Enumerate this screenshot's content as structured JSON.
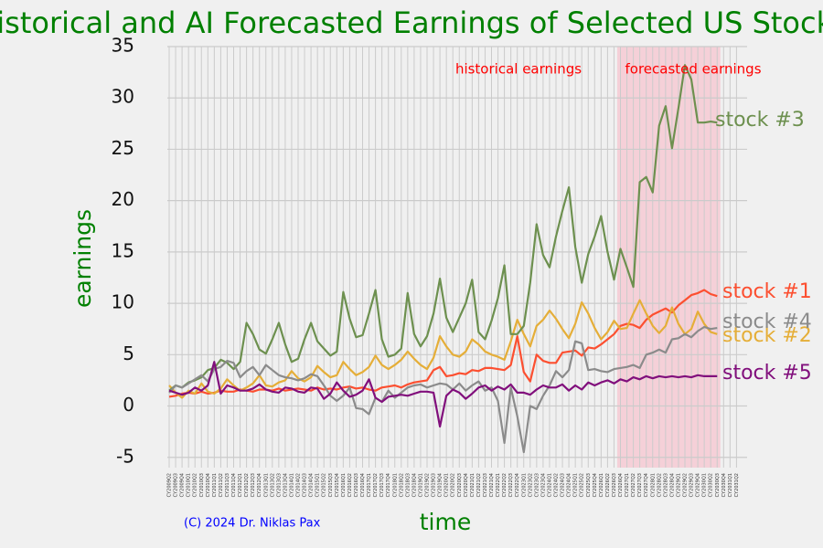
{
  "chart_data": {
    "type": "line",
    "title": "Historical and AI Forecasted Earnings of Selected US Stocks",
    "xlabel": "time",
    "ylabel": "earnings",
    "credit": "(C) 2024 Dr. Niklas Pax",
    "annotations": [
      "historical earnings",
      "forecasted earnings"
    ],
    "shaded_from": "CY2026Q4",
    "shaded_to": "CY2030Q3",
    "shade_color": "#f7c6d0",
    "grid": true,
    "ylim": [
      -6,
      35
    ],
    "yticks": [
      -5,
      0,
      5,
      10,
      15,
      20,
      25,
      30,
      35
    ],
    "categories": [
      "CY2009Q2",
      "CY2009Q3",
      "CY2009Q4",
      "CY2010Q1",
      "CY2010Q2",
      "CY2010Q3",
      "CY2010Q4",
      "CY2011Q1",
      "CY2011Q2",
      "CY2011Q3",
      "CY2011Q4",
      "CY2012Q1",
      "CY2012Q2",
      "CY2012Q3",
      "CY2012Q4",
      "CY2013Q1",
      "CY2013Q2",
      "CY2013Q3",
      "CY2013Q4",
      "CY2014Q1",
      "CY2014Q2",
      "CY2014Q3",
      "CY2014Q4",
      "CY2015Q1",
      "CY2015Q2",
      "CY2015Q3",
      "CY2015Q4",
      "CY2016Q1",
      "CY2016Q2",
      "CY2016Q3",
      "CY2016Q4",
      "CY2017Q1",
      "CY2017Q2",
      "CY2017Q3",
      "CY2017Q4",
      "CY2018Q1",
      "CY2018Q2",
      "CY2018Q3",
      "CY2018Q4",
      "CY2019Q1",
      "CY2019Q2",
      "CY2019Q3",
      "CY2019Q4",
      "CY2020Q1",
      "CY2020Q2",
      "CY2020Q3",
      "CY2020Q4",
      "CY2021Q1",
      "CY2021Q2",
      "CY2021Q3",
      "CY2021Q4",
      "CY2022Q1",
      "CY2022Q2",
      "CY2022Q3",
      "CY2022Q4",
      "CY2023Q1",
      "CY2023Q2",
      "CY2023Q3",
      "CY2023Q4",
      "CY2024Q1",
      "CY2024Q2",
      "CY2024Q3",
      "CY2024Q4",
      "CY2025Q1",
      "CY2025Q2",
      "CY2025Q3",
      "CY2025Q4",
      "CY2026Q1",
      "CY2026Q2",
      "CY2026Q3",
      "CY2026Q4",
      "CY2027Q1",
      "CY2027Q2",
      "CY2027Q3",
      "CY2027Q4",
      "CY2028Q1",
      "CY2028Q2",
      "CY2028Q3",
      "CY2028Q4",
      "CY2029Q1",
      "CY2029Q2",
      "CY2029Q3",
      "CY2029Q4",
      "CY2030Q1",
      "CY2030Q2",
      "CY2030Q3",
      "CY2030Q4",
      "CY2031Q1",
      "CY2031Q2"
    ],
    "series": [
      {
        "name": "stock #1",
        "color": "#fc4f30",
        "values": [
          0.9,
          1.0,
          1.2,
          1.3,
          1.2,
          1.4,
          1.2,
          1.3,
          1.5,
          1.4,
          1.4,
          1.6,
          1.5,
          1.4,
          1.6,
          1.6,
          1.5,
          1.7,
          1.5,
          1.6,
          1.7,
          1.6,
          1.5,
          1.8,
          1.6,
          1.7,
          1.6,
          1.8,
          1.9,
          1.7,
          1.8,
          1.6,
          1.5,
          1.8,
          1.9,
          2.0,
          1.8,
          2.1,
          2.3,
          2.4,
          2.5,
          3.5,
          3.8,
          2.9,
          3.0,
          3.2,
          3.1,
          3.5,
          3.4,
          3.7,
          3.7,
          3.6,
          3.5,
          4.0,
          6.8,
          3.3,
          2.4,
          5.0,
          4.4,
          4.2,
          4.2,
          5.2,
          5.3,
          5.4,
          4.9,
          5.7,
          5.6,
          6.0,
          6.5,
          7.0,
          7.8,
          8.0,
          7.9,
          7.6,
          8.4,
          8.9,
          9.2,
          9.5,
          9.1,
          9.8,
          10.3,
          10.8,
          11.0,
          11.3,
          10.9,
          10.7,
          null,
          null,
          null
        ]
      },
      {
        "name": "stock #2",
        "color": "#e5ae38",
        "values": [
          2.0,
          1.3,
          0.8,
          1.5,
          1.2,
          2.2,
          1.4,
          1.2,
          1.7,
          2.6,
          2.0,
          1.5,
          1.8,
          2.2,
          3.0,
          2.0,
          1.9,
          2.3,
          2.5,
          3.4,
          2.7,
          2.4,
          2.8,
          3.9,
          3.3,
          2.8,
          3.0,
          4.3,
          3.6,
          3.0,
          3.3,
          3.8,
          4.9,
          4.0,
          3.6,
          4.0,
          4.5,
          5.3,
          4.6,
          4.0,
          3.6,
          4.7,
          6.8,
          5.8,
          5.0,
          4.8,
          5.3,
          6.5,
          6.0,
          5.3,
          5.0,
          4.8,
          4.5,
          6.3,
          8.4,
          7.0,
          5.8,
          7.8,
          8.4,
          9.3,
          8.5,
          7.5,
          6.6,
          8.0,
          10.1,
          9.0,
          7.6,
          6.5,
          7.2,
          8.3,
          7.5,
          7.6,
          9.0,
          10.3,
          9.0,
          7.8,
          7.1,
          7.8,
          9.6,
          8.0,
          7.0,
          7.5,
          9.2,
          8.0,
          7.2,
          7.0,
          null,
          null,
          null
        ]
      },
      {
        "name": "stock #3",
        "color": "#6d904f",
        "values": [
          1.5,
          2.0,
          1.8,
          2.3,
          2.5,
          2.8,
          3.5,
          3.7,
          4.5,
          4.2,
          3.6,
          4.3,
          8.1,
          7.0,
          5.5,
          5.1,
          6.5,
          8.1,
          6.0,
          4.3,
          4.6,
          6.5,
          8.1,
          6.3,
          5.6,
          4.9,
          5.3,
          11.1,
          8.5,
          6.7,
          6.9,
          9.0,
          11.3,
          6.5,
          4.8,
          5.0,
          5.6,
          11.0,
          7.0,
          5.8,
          6.8,
          9.0,
          12.4,
          8.6,
          7.2,
          8.6,
          10.0,
          12.3,
          7.2,
          6.5,
          8.3,
          10.5,
          13.7,
          7.0,
          7.0,
          7.8,
          12.0,
          17.7,
          14.7,
          13.5,
          16.5,
          19.0,
          21.3,
          15.5,
          12.0,
          14.8,
          16.5,
          18.5,
          15.0,
          12.3,
          15.3,
          13.5,
          11.6,
          21.8,
          22.3,
          20.8,
          27.3,
          29.2,
          25.1,
          29.0,
          33.2,
          31.8,
          27.6,
          27.6,
          27.7,
          27.6,
          null,
          null,
          null
        ]
      },
      {
        "name": "stock #4",
        "color": "#8b8b8b",
        "values": [
          1.3,
          2.0,
          1.8,
          2.2,
          2.6,
          3.0,
          2.4,
          3.6,
          3.8,
          4.4,
          4.2,
          2.8,
          3.4,
          3.8,
          3.0,
          4.0,
          3.5,
          3.0,
          2.8,
          2.7,
          2.5,
          2.7,
          3.1,
          2.9,
          2.0,
          1.0,
          0.5,
          1.0,
          1.8,
          -0.2,
          -0.3,
          -0.8,
          0.8,
          0.4,
          1.5,
          0.8,
          1.3,
          1.8,
          2.0,
          2.1,
          1.8,
          2.0,
          2.2,
          2.1,
          1.6,
          2.2,
          1.5,
          2.0,
          2.4,
          1.5,
          1.8,
          0.5,
          -3.6,
          1.8,
          -1.0,
          -4.5,
          0,
          -0.3,
          1.0,
          2.0,
          3.4,
          2.8,
          3.5,
          6.3,
          6.1,
          3.5,
          3.6,
          3.4,
          3.3,
          3.6,
          3.7,
          3.8,
          4.0,
          3.7,
          5.0,
          5.2,
          5.5,
          5.2,
          6.5,
          6.6,
          7.0,
          6.7,
          7.3,
          7.7,
          7.5,
          7.6,
          null,
          null,
          null
        ]
      },
      {
        "name": "stock #5",
        "color": "#810f7c",
        "values": [
          1.5,
          1.3,
          1.1,
          1.3,
          1.8,
          1.5,
          2.0,
          4.3,
          1.2,
          2.0,
          1.8,
          1.5,
          1.5,
          1.7,
          2.1,
          1.6,
          1.4,
          1.3,
          1.8,
          1.7,
          1.4,
          1.3,
          1.8,
          1.7,
          0.7,
          1.2,
          2.3,
          1.5,
          0.9,
          1.1,
          1.5,
          2.6,
          0.8,
          0.4,
          0.9,
          1.0,
          1.1,
          1.0,
          1.2,
          1.4,
          1.4,
          1.3,
          -2.0,
          1.0,
          1.6,
          1.3,
          0.7,
          1.2,
          1.8,
          2.0,
          1.5,
          1.9,
          1.6,
          2.1,
          1.3,
          1.3,
          1.1,
          1.6,
          2.0,
          1.8,
          1.8,
          2.1,
          1.5,
          2.0,
          1.6,
          2.3,
          2.0,
          2.3,
          2.5,
          2.2,
          2.6,
          2.4,
          2.8,
          2.6,
          2.9,
          2.7,
          2.9,
          2.8,
          2.9,
          2.8,
          2.9,
          2.8,
          3.0,
          2.9,
          2.9,
          2.9,
          null,
          null,
          null
        ]
      }
    ]
  }
}
